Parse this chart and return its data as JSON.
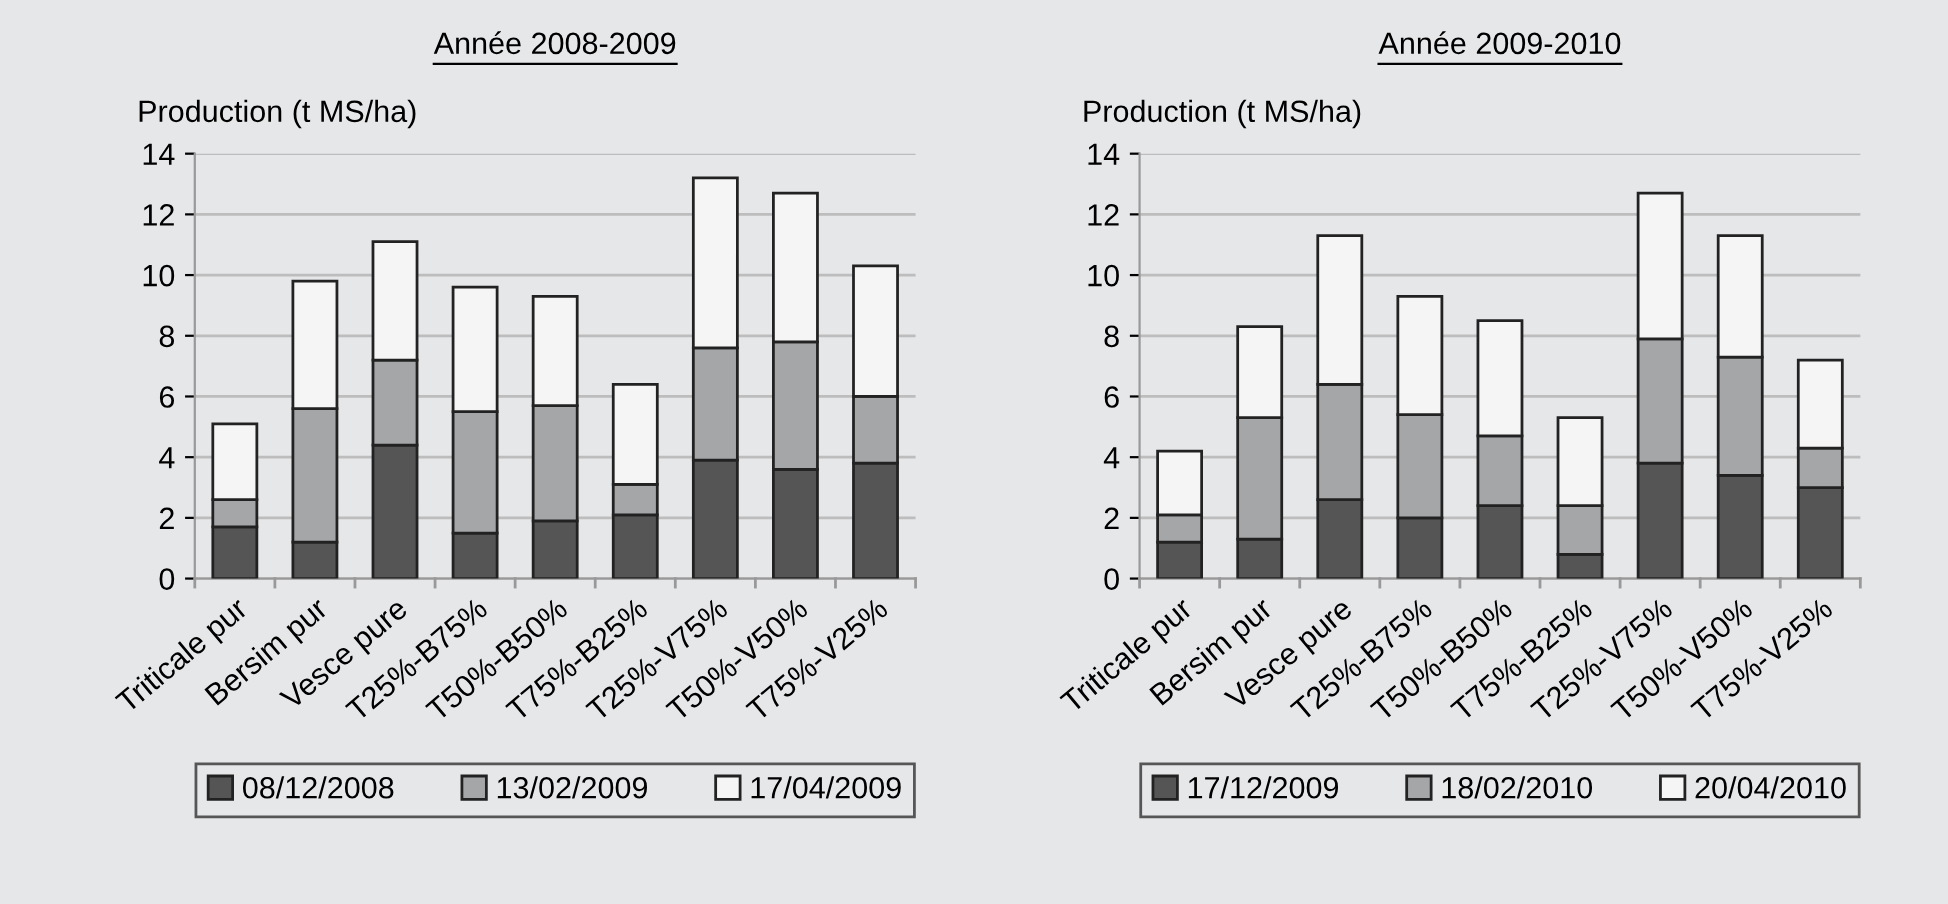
{
  "chart_data": [
    {
      "type": "bar",
      "title": "Année 2008-2009",
      "ylabel": "Production (t MS/ha)",
      "stacked": true,
      "grid": "y",
      "legend": "bottom",
      "categories": [
        "Triticale pur",
        "Bersim pur",
        "Vesce pure",
        "T25%-B75%",
        "T50%-B50%",
        "T75%-B25%",
        "T25%-V75%",
        "T50%-V50%",
        "T75%-V25%"
      ],
      "ylim": [
        0,
        14
      ],
      "yticks": [
        0,
        2,
        4,
        6,
        8,
        10,
        12,
        14
      ],
      "series": [
        {
          "name": "08/12/2008",
          "color": "#555555",
          "values": [
            1.7,
            1.2,
            4.4,
            1.5,
            1.9,
            2.1,
            3.9,
            3.6,
            3.8
          ]
        },
        {
          "name": "13/02/2009",
          "color": "#a5a6a8",
          "values": [
            0.9,
            4.4,
            2.8,
            4.0,
            3.8,
            1.0,
            3.7,
            4.2,
            2.2
          ]
        },
        {
          "name": "17/04/2009",
          "color": "#f5f5f5",
          "values": [
            2.5,
            4.2,
            3.9,
            4.1,
            3.6,
            3.3,
            5.6,
            4.9,
            4.3
          ]
        }
      ]
    },
    {
      "type": "bar",
      "title": "Année 2009-2010",
      "ylabel": "Production (t MS/ha)",
      "stacked": true,
      "grid": "y",
      "legend": "bottom",
      "categories": [
        "Triticale pur",
        "Bersim pur",
        "Vesce pure",
        "T25%-B75%",
        "T50%-B50%",
        "T75%-B25%",
        "T25%-V75%",
        "T50%-V50%",
        "T75%-V25%"
      ],
      "ylim": [
        0,
        14
      ],
      "yticks": [
        0,
        2,
        4,
        6,
        8,
        10,
        12,
        14
      ],
      "series": [
        {
          "name": "17/12/2009",
          "color": "#555555",
          "values": [
            1.2,
            1.3,
            2.6,
            2.0,
            2.4,
            0.8,
            3.8,
            3.4,
            3.0
          ]
        },
        {
          "name": "18/02/2010",
          "color": "#a5a6a8",
          "values": [
            0.9,
            4.0,
            3.8,
            3.4,
            2.3,
            1.6,
            4.1,
            3.9,
            1.3
          ]
        },
        {
          "name": "20/04/2010",
          "color": "#f5f5f5",
          "values": [
            2.1,
            3.0,
            4.9,
            3.9,
            3.8,
            2.9,
            4.8,
            4.0,
            2.9
          ]
        }
      ]
    }
  ]
}
